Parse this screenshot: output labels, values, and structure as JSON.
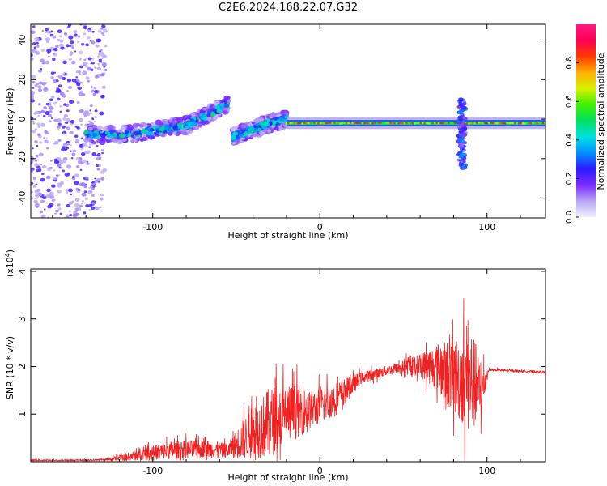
{
  "title": "C2E6.2024.168.22.07.G32",
  "colors": {
    "snr_line": "#ee2222",
    "colorbar_stops": [
      "#f0f0ff",
      "#b8a6f5",
      "#7a2bff",
      "#2a1bff",
      "#0090ff",
      "#00e0e0",
      "#00e060",
      "#40f000",
      "#d8f000",
      "#ffb000",
      "#ff3a00",
      "#ff0055",
      "#ff1a80"
    ]
  },
  "chart_data": [
    {
      "type": "heatmap",
      "name": "spectrogram",
      "xlabel": "Height of straight line (km)",
      "ylabel": "Frequency (Hz)",
      "xlim": [
        -173,
        135
      ],
      "ylim": [
        -50,
        48
      ],
      "xticks": [
        -100,
        0,
        100
      ],
      "yticks": [
        -40,
        -20,
        0,
        20,
        40
      ],
      "grid": false,
      "colorbar": {
        "label": "Normalized spectral amplitude",
        "range": [
          0,
          1
        ],
        "ticks": [
          0.0,
          0.2,
          0.4,
          0.6,
          0.8
        ]
      },
      "features": [
        {
          "description": "scatter noise",
          "x_range": [
            -173,
            -128
          ],
          "y_range": [
            -50,
            48
          ],
          "amplitude": 0.15
        },
        {
          "description": "rising band",
          "points": [
            [
              -140,
              -8
            ],
            [
              -120,
              -8
            ],
            [
              -100,
              -6
            ],
            [
              -80,
              -3
            ],
            [
              -65,
              3
            ],
            [
              -55,
              8
            ]
          ],
          "amplitude": 0.45
        },
        {
          "description": "secondary band",
          "points": [
            [
              -52,
              -9
            ],
            [
              -40,
              -5
            ],
            [
              -30,
              -2
            ],
            [
              -20,
              0
            ]
          ],
          "amplitude": 0.4
        },
        {
          "description": "steady tone",
          "points": [
            [
              -20,
              -2
            ],
            [
              135,
              -2
            ]
          ],
          "amplitude": 0.9
        },
        {
          "description": "burst",
          "x": 85,
          "y_range": [
            -25,
            10
          ],
          "amplitude": 0.3
        }
      ]
    },
    {
      "type": "line",
      "name": "snr",
      "xlabel": "Height of straight line (km)",
      "ylabel": "SNR (10 * v/v)",
      "y_multiplier": "(x10",
      "y_multiplier_exp": "4",
      "y_multiplier_close": ")",
      "xlim": [
        -173,
        135
      ],
      "ylim": [
        0,
        4.05
      ],
      "xticks": [
        -100,
        0,
        100
      ],
      "yticks": [
        1,
        2,
        3,
        4
      ],
      "grid": false,
      "envelope": [
        {
          "x": -173,
          "base": 0.02,
          "amp": 0.01
        },
        {
          "x": -130,
          "base": 0.03,
          "amp": 0.04
        },
        {
          "x": -110,
          "base": 0.12,
          "amp": 0.22
        },
        {
          "x": -90,
          "base": 0.22,
          "amp": 0.38
        },
        {
          "x": -70,
          "base": 0.25,
          "amp": 0.4
        },
        {
          "x": -55,
          "base": 0.22,
          "amp": 0.3
        },
        {
          "x": -45,
          "base": 0.45,
          "amp": 0.9
        },
        {
          "x": -30,
          "base": 0.75,
          "amp": 1.5
        },
        {
          "x": -20,
          "base": 0.95,
          "amp": 1.3
        },
        {
          "x": -5,
          "base": 1.05,
          "amp": 0.8
        },
        {
          "x": 10,
          "base": 1.3,
          "amp": 0.7
        },
        {
          "x": 25,
          "base": 1.75,
          "amp": 0.25
        },
        {
          "x": 45,
          "base": 1.95,
          "amp": 0.2
        },
        {
          "x": 60,
          "base": 2.0,
          "amp": 0.5
        },
        {
          "x": 70,
          "base": 1.95,
          "amp": 1.0
        },
        {
          "x": 80,
          "base": 1.7,
          "amp": 1.6
        },
        {
          "x": 90,
          "base": 1.6,
          "amp": 2.3
        },
        {
          "x": 97,
          "base": 1.4,
          "amp": 1.2
        },
        {
          "x": 101,
          "base": 1.93,
          "amp": 0.05
        },
        {
          "x": 135,
          "base": 1.88,
          "amp": 0.04
        }
      ]
    }
  ]
}
